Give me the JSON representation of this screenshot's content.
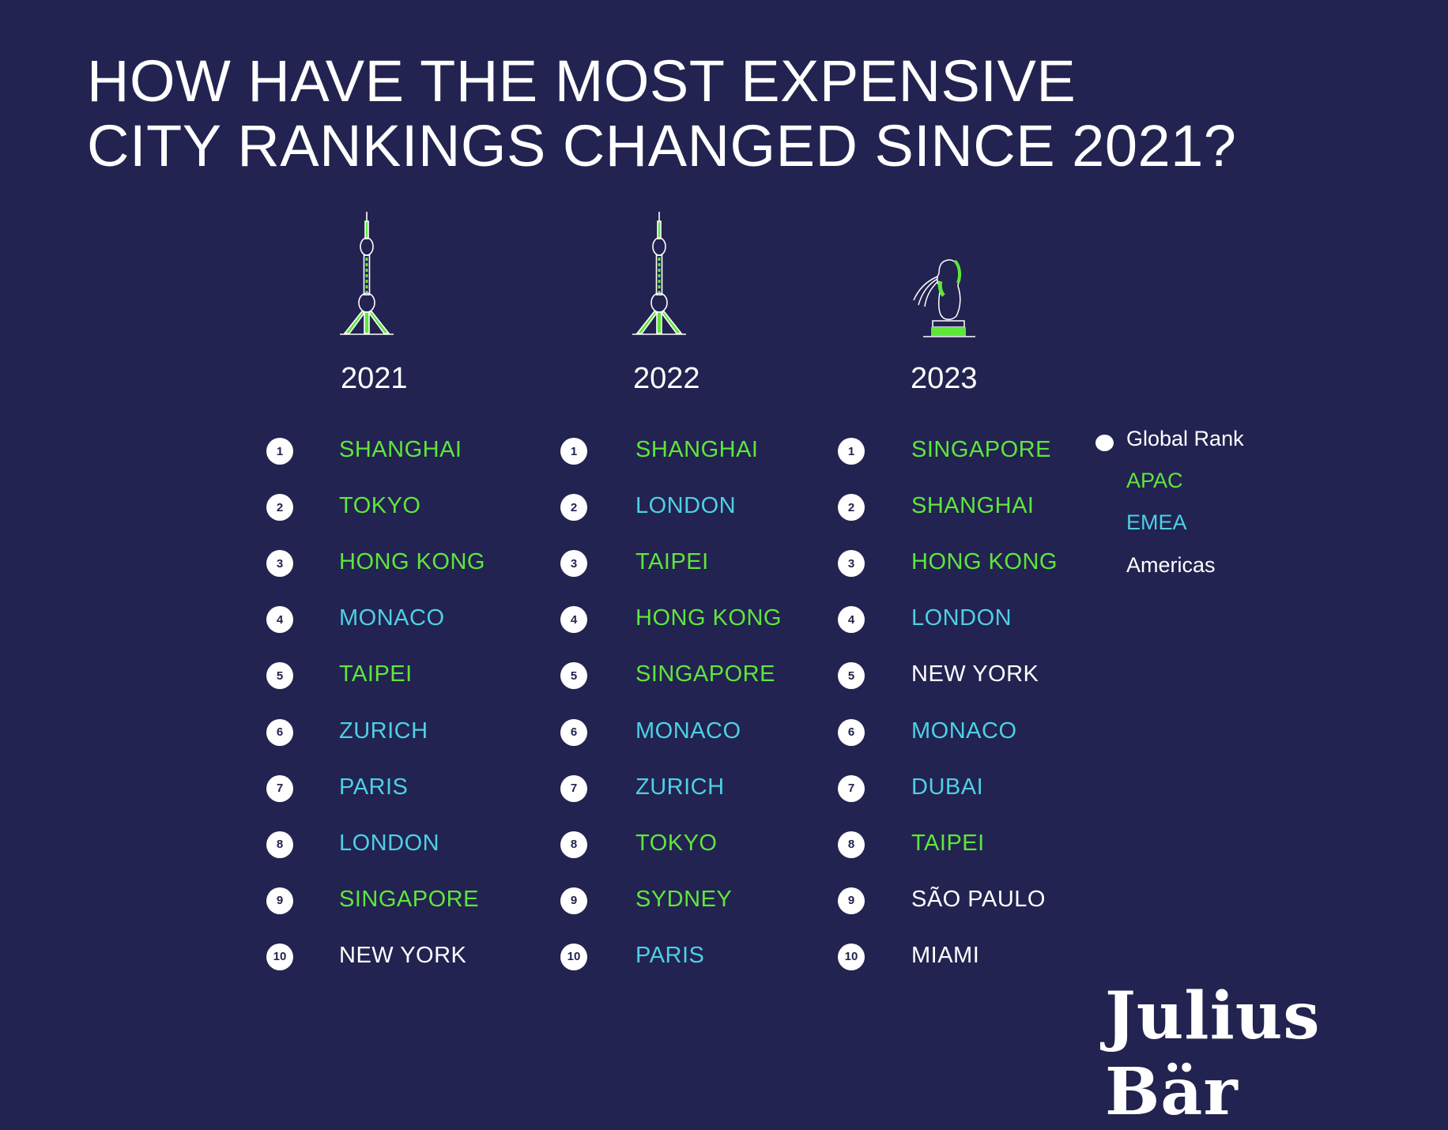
{
  "title": {
    "line1": "HOW HAVE THE MOST EXPENSIVE",
    "line2": "CITY RANKINGS CHANGED SINCE 2021?"
  },
  "colors": {
    "background": "#222350",
    "APAC": "#5fe63c",
    "EMEA": "#4fcfe4",
    "Americas": "#ffffff"
  },
  "columns": [
    {
      "year": "2021",
      "icon": "oriental-pearl-tower-icon",
      "cities": [
        {
          "rank": "1",
          "name": "SHANGHAI",
          "region": "APAC"
        },
        {
          "rank": "2",
          "name": "TOKYO",
          "region": "APAC"
        },
        {
          "rank": "3",
          "name": "HONG KONG",
          "region": "APAC"
        },
        {
          "rank": "4",
          "name": "MONACO",
          "region": "EMEA"
        },
        {
          "rank": "5",
          "name": "TAIPEI",
          "region": "APAC"
        },
        {
          "rank": "6",
          "name": "ZURICH",
          "region": "EMEA"
        },
        {
          "rank": "7",
          "name": "PARIS",
          "region": "EMEA"
        },
        {
          "rank": "8",
          "name": "LONDON",
          "region": "EMEA"
        },
        {
          "rank": "9",
          "name": "SINGAPORE",
          "region": "APAC"
        },
        {
          "rank": "10",
          "name": "NEW YORK",
          "region": "Americas"
        }
      ]
    },
    {
      "year": "2022",
      "icon": "oriental-pearl-tower-icon",
      "cities": [
        {
          "rank": "1",
          "name": "SHANGHAI",
          "region": "APAC"
        },
        {
          "rank": "2",
          "name": "LONDON",
          "region": "EMEA"
        },
        {
          "rank": "3",
          "name": "TAIPEI",
          "region": "APAC"
        },
        {
          "rank": "4",
          "name": "HONG KONG",
          "region": "APAC"
        },
        {
          "rank": "5",
          "name": "SINGAPORE",
          "region": "APAC"
        },
        {
          "rank": "6",
          "name": "MONACO",
          "region": "EMEA"
        },
        {
          "rank": "7",
          "name": "ZURICH",
          "region": "EMEA"
        },
        {
          "rank": "8",
          "name": "TOKYO",
          "region": "APAC"
        },
        {
          "rank": "9",
          "name": "SYDNEY",
          "region": "APAC"
        },
        {
          "rank": "10",
          "name": "PARIS",
          "region": "EMEA"
        }
      ]
    },
    {
      "year": "2023",
      "icon": "merlion-icon",
      "cities": [
        {
          "rank": "1",
          "name": "SINGAPORE",
          "region": "APAC"
        },
        {
          "rank": "2",
          "name": "SHANGHAI",
          "region": "APAC"
        },
        {
          "rank": "3",
          "name": "HONG KONG",
          "region": "APAC"
        },
        {
          "rank": "4",
          "name": "LONDON",
          "region": "EMEA"
        },
        {
          "rank": "5",
          "name": "NEW YORK",
          "region": "Americas"
        },
        {
          "rank": "6",
          "name": "MONACO",
          "region": "EMEA"
        },
        {
          "rank": "7",
          "name": "DUBAI",
          "region": "EMEA"
        },
        {
          "rank": "8",
          "name": "TAIPEI",
          "region": "APAC"
        },
        {
          "rank": "9",
          "name": "SÃO PAULO",
          "region": "Americas"
        },
        {
          "rank": "10",
          "name": "MIAMI",
          "region": "Americas"
        }
      ]
    }
  ],
  "legend": {
    "global_rank": "Global Rank",
    "apac": "APAC",
    "emea": "EMEA",
    "americas": "Americas"
  },
  "logo": "Julius Bär"
}
